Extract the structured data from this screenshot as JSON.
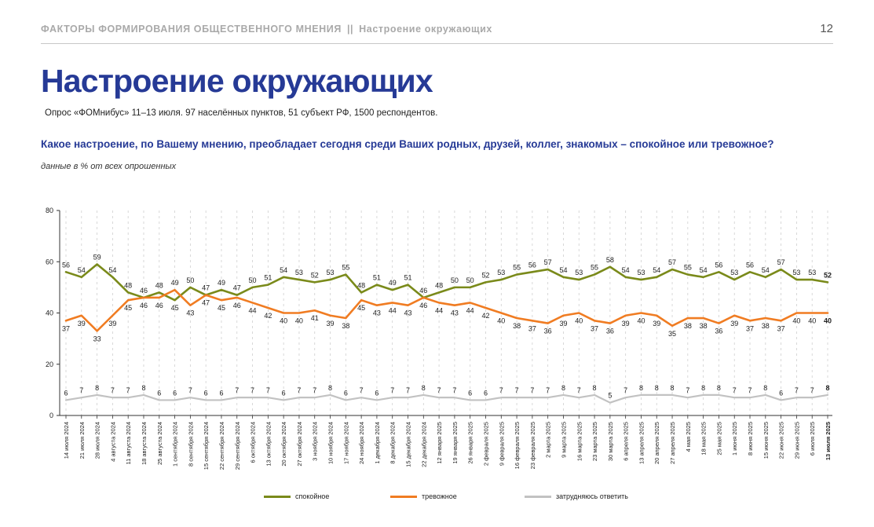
{
  "header": {
    "section": "ФАКТОРЫ ФОРМИРОВАНИЯ ОБЩЕСТВЕННОГО МНЕНИЯ",
    "separator": "||",
    "subsection": "Настроение окружающих",
    "page_number": "12"
  },
  "title": "Настроение окружающих",
  "subtitle": "Опрос «ФОМнибус» 11–13 июля. 97 населённых пунктов, 51 субъект РФ, 1500 респондентов.",
  "question": "Какое настроение, по Вашему мнению, преобладает сегодня среди Ваших родных, друзей, коллег, знакомых – спокойное или тревожное?",
  "note": "данные в % от всех опрошенных",
  "chart_data": {
    "type": "line",
    "ylim": [
      0,
      80
    ],
    "yticks": [
      0,
      20,
      40,
      60,
      80
    ],
    "grid": "vertical-dashed",
    "legend": "bottom",
    "x": [
      "14 июля 2024",
      "21 июля 2024",
      "28 июля 2024",
      "4 августа 2024",
      "11 августа 2024",
      "18 августа 2024",
      "25 августа 2024",
      "1 сентября 2024",
      "8 сентября 2024",
      "15 сентября 2024",
      "22 сентября 2024",
      "29 сентября 2024",
      "6 октября 2024",
      "13 октября 2024",
      "20 октября 2024",
      "27 октября 2024",
      "3 ноября 2024",
      "10 ноября 2024",
      "17 ноября 2024",
      "24 ноября 2024",
      "1 декабря 2024",
      "8 декабря 2024",
      "15 декабря 2024",
      "22 декабря 2024",
      "12 января 2025",
      "19 января 2025",
      "26 января 2025",
      "2 февраля 2025",
      "9 февраля 2025",
      "16 февраля 2025",
      "23 февраля 2025",
      "2 марта 2025",
      "9 марта 2025",
      "16 марта 2025",
      "23 марта 2025",
      "30 марта 2025",
      "6 апреля 2025",
      "13 апреля 2025",
      "20 апреля 2025",
      "27 апреля 2025",
      "4 мая 2025",
      "18 мая 2025",
      "25 мая 2025",
      "1 июня 2025",
      "8 июня 2025",
      "15 июня 2025",
      "22 июня 2025",
      "29 июня 2025",
      "6 июля 2025",
      "13 июля 2025"
    ],
    "series": [
      {
        "name": "спокойное",
        "color": "#7a8a1a",
        "values": [
          56,
          54,
          59,
          54,
          48,
          46,
          48,
          45,
          50,
          47,
          49,
          47,
          50,
          51,
          54,
          53,
          52,
          53,
          55,
          48,
          51,
          49,
          51,
          46,
          48,
          50,
          50,
          52,
          53,
          55,
          56,
          57,
          54,
          53,
          55,
          58,
          54,
          53,
          54,
          57,
          55,
          54,
          56,
          53,
          56,
          54,
          57,
          53,
          53,
          52
        ]
      },
      {
        "name": "тревожное",
        "color": "#f07c22",
        "values": [
          37,
          39,
          33,
          39,
          45,
          46,
          46,
          49,
          43,
          47,
          45,
          46,
          44,
          42,
          40,
          40,
          41,
          39,
          38,
          45,
          43,
          44,
          43,
          46,
          44,
          43,
          44,
          42,
          40,
          38,
          37,
          36,
          39,
          40,
          37,
          36,
          39,
          40,
          39,
          35,
          38,
          38,
          36,
          39,
          37,
          38,
          37,
          40,
          40,
          40
        ]
      },
      {
        "name": "затрудняюсь ответить",
        "color": "#c2c2c2",
        "values": [
          6,
          7,
          8,
          7,
          7,
          8,
          6,
          6,
          7,
          6,
          6,
          7,
          7,
          7,
          6,
          7,
          7,
          8,
          6,
          7,
          6,
          7,
          7,
          8,
          7,
          7,
          6,
          6,
          7,
          7,
          7,
          7,
          8,
          7,
          8,
          5,
          7,
          8,
          8,
          8,
          7,
          8,
          8,
          7,
          7,
          8,
          6,
          7,
          7,
          8
        ]
      }
    ]
  }
}
